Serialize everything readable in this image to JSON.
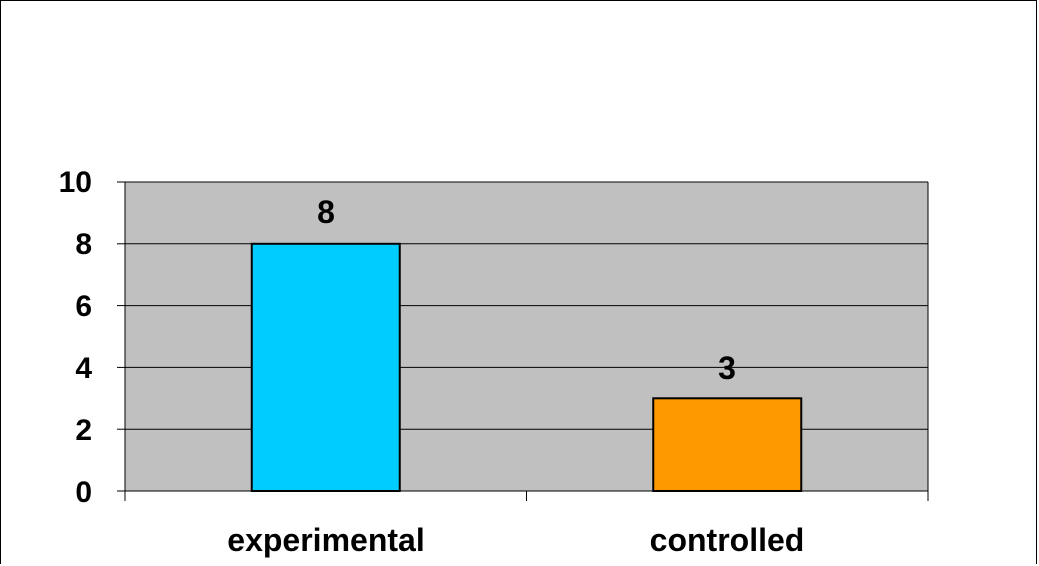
{
  "chart_data": {
    "type": "bar",
    "categories": [
      "experimental",
      "controlled"
    ],
    "values": [
      8,
      3
    ],
    "data_labels": [
      "8",
      "3"
    ],
    "title": "",
    "xlabel": "",
    "ylabel": "",
    "ylim": [
      0,
      10
    ],
    "yticks": [
      "0",
      "2",
      "4",
      "6",
      "8",
      "10"
    ],
    "grid": true,
    "legend": "none",
    "colors": {
      "plot_background": "#c0c0c0",
      "bars": [
        "#00ccff",
        "#ff9900"
      ],
      "gridline": "#000000"
    }
  }
}
